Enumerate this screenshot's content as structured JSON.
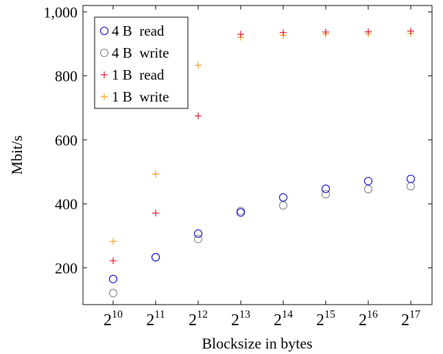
{
  "chart_data": {
    "type": "scatter",
    "title": "",
    "xlabel": "Blocksize in bytes",
    "ylabel": "Mbit/s",
    "x_scale": "log2",
    "x": [
      1024,
      2048,
      4096,
      8192,
      16384,
      32768,
      65536,
      131072
    ],
    "x_tick_labels": [
      {
        "base": "2",
        "exp": "10"
      },
      {
        "base": "2",
        "exp": "11"
      },
      {
        "base": "2",
        "exp": "12"
      },
      {
        "base": "2",
        "exp": "13"
      },
      {
        "base": "2",
        "exp": "14"
      },
      {
        "base": "2",
        "exp": "15"
      },
      {
        "base": "2",
        "exp": "16"
      },
      {
        "base": "2",
        "exp": "17"
      }
    ],
    "y_ticks": [
      200,
      400,
      600,
      800,
      1000
    ],
    "y_tick_labels": [
      "200",
      "400",
      "600",
      "800",
      "1,000"
    ],
    "ylim": [
      85,
      1020
    ],
    "grid": false,
    "legend_position": "top-left",
    "series": [
      {
        "name": "4 B  read",
        "marker": "circle",
        "color": "#0000cc",
        "values": [
          165,
          233,
          307,
          373,
          420,
          447,
          471,
          478
        ]
      },
      {
        "name": "4 B  write",
        "marker": "circle",
        "color": "#7f7f7f",
        "values": [
          121,
          233,
          290,
          378,
          395,
          430,
          446,
          455
        ]
      },
      {
        "name": "1 B  read",
        "marker": "plus",
        "color": "#e0102a",
        "values": [
          222,
          371,
          675,
          930,
          935,
          937,
          938,
          940
        ]
      },
      {
        "name": "1 B  write",
        "marker": "plus",
        "color": "#f39a18",
        "values": [
          283,
          493,
          833,
          921,
          927,
          931,
          932,
          933
        ]
      }
    ]
  }
}
